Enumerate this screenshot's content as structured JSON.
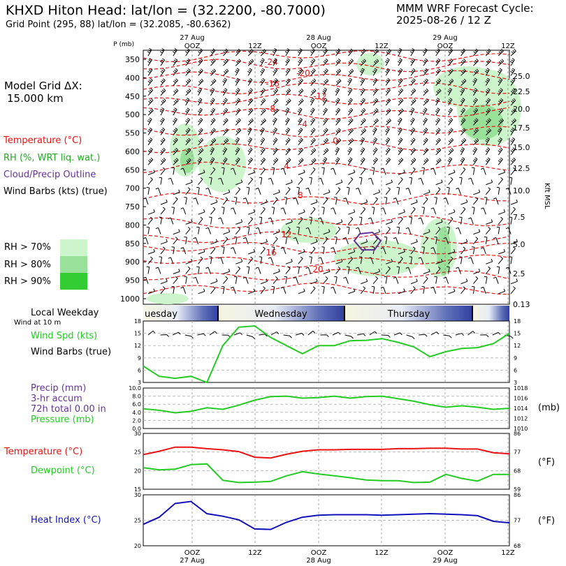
{
  "header": {
    "station": "KHXD Hiton Head:  lat/lon = (32.2200, -80.7000)",
    "gridpoint": "Grid Point (295, 88) lat/lon = (32.2085, -80.6362)",
    "model_cycle_line1": "MMM WRF Forecast Cycle:",
    "model_cycle_line2": "2025-08-26 / 12  Z"
  },
  "left_panel": {
    "model_grid_label": "Model Grid ΔX:",
    "model_grid_value": "15.000 km",
    "legend_temperature": "Temperature (°C)",
    "legend_rh": "RH (%, WRT liq. wat.)",
    "legend_cloud": "Cloud/Precip Outline",
    "legend_wind": "Wind Barbs (kts) (true)",
    "rh70": "RH > 70%",
    "rh80": "RH > 80%",
    "rh90": "RH > 90%",
    "local_weekday": "Local Weekday",
    "wind_at_10m": "Wind at 10 m",
    "wind_spd": "Wind Spd (kts)",
    "wind_barbs": "Wind Barbs (true)",
    "precip": "Precip (mm)",
    "precip_accum": "3-hr accum",
    "precip_total": "72h total 0.00 in",
    "pressure": "Pressure (mb)",
    "temperature": "Temperature (°C)",
    "dewpoint": "Dewpoint (°C)",
    "heat_index": "Heat Index (°C)"
  },
  "right_units": {
    "mb": "(mb)",
    "degF1": "(°F)",
    "degF2": "(°F)",
    "kft": "Kft MSL"
  },
  "colors": {
    "temperature": "#ee1111",
    "rh": "#22cc22",
    "cloud": "#663399",
    "heat": "#1111bb",
    "rh70": "#ccf5cc",
    "rh80": "#99e099",
    "rh90": "#33cc33"
  },
  "chart_data": [
    {
      "type": "cross-section",
      "top_time_labels": [
        {
          "day": "27 Aug",
          "hour": "OOZ"
        },
        {
          "day": "",
          "hour": "12Z"
        },
        {
          "day": "28 Aug",
          "hour": "OOZ"
        },
        {
          "day": "",
          "hour": "12Z"
        },
        {
          "day": "29 Aug",
          "hour": "OOZ"
        },
        {
          "day": "",
          "hour": "12Z"
        }
      ],
      "ylabel": "P (mb)",
      "pressure_levels": [
        "350",
        "400",
        "450",
        "500",
        "550",
        "600",
        "650",
        "700",
        "750",
        "800",
        "850",
        "900",
        "950",
        "1000"
      ],
      "height_ticks": [
        "25.0",
        "22.5",
        "20.0",
        "17.5",
        "15.0",
        "12.5",
        "10.0",
        "7.5",
        "5.0",
        "2.5",
        "0.13"
      ],
      "height_label": "Kft MSL",
      "isotherm_labels": [
        "-24",
        "-20",
        "-16",
        "-12",
        "-8",
        "-4",
        "0",
        "4",
        "8",
        "12",
        "16",
        "20"
      ]
    },
    {
      "type": "band",
      "days": [
        "uesday",
        "Wednesday",
        "Thursday"
      ]
    },
    {
      "type": "line",
      "series": [
        {
          "name": "Wind Spd (kts)",
          "values": [
            7,
            4.5,
            4,
            4.5,
            3,
            12,
            16.5,
            16.8,
            14,
            12,
            10,
            12,
            12,
            13.2,
            13.3,
            13.7,
            12.8,
            11.7,
            9.3,
            10.5,
            11.3,
            11.5,
            12.5,
            15
          ]
        }
      ],
      "ylim": [
        3,
        18
      ],
      "left_ticks": [
        "18",
        "15",
        "12",
        "9",
        "6",
        "3"
      ],
      "right_ticks": [
        "18",
        "15",
        "12",
        "9",
        "6",
        "3"
      ]
    },
    {
      "type": "line",
      "series": [
        {
          "name": "Pressure (mb)",
          "values": [
            1013.9,
            1013.6,
            1013.1,
            1013.4,
            1014.1,
            1013.8,
            1014.6,
            1015.6,
            1016.3,
            1016.4,
            1016.0,
            1016.1,
            1016.4,
            1016.0,
            1016.3,
            1016.4,
            1015.9,
            1015.4,
            1014.7,
            1014.2,
            1014.5,
            1014.2,
            1013.8,
            1014.0
          ]
        }
      ],
      "ylim": [
        1010,
        1018
      ],
      "left_ticks": [
        "10.0",
        "8.0",
        "6.0",
        "4.0",
        "2.0",
        "0.0"
      ],
      "right_ticks": [
        "1018",
        "1016",
        "1014",
        "1012",
        "1010"
      ]
    },
    {
      "type": "line",
      "series": [
        {
          "name": "Temperature (°C)",
          "values": [
            24.3,
            25.2,
            26.3,
            26.3,
            25.9,
            25.6,
            25.1,
            23.6,
            23.4,
            24.4,
            25.2,
            25.6,
            25.6,
            25.7,
            25.7,
            25.7,
            25.9,
            25.9,
            26.0,
            26.0,
            25.8,
            25.8,
            24.8,
            24.5
          ]
        },
        {
          "name": "Dewpoint (°C)",
          "values": [
            20.8,
            20.2,
            20.4,
            21.6,
            21.8,
            17.4,
            16.8,
            16.9,
            17.1,
            18.6,
            19.7,
            19.1,
            18.6,
            18.1,
            17.5,
            17.3,
            17.3,
            16.8,
            16.9,
            19.0,
            17.9,
            17.2,
            19.0,
            19.0
          ]
        }
      ],
      "ylim": [
        15,
        30
      ],
      "left_ticks": [
        "30",
        "25",
        "20",
        "15"
      ],
      "right_ticks": [
        "86",
        "77",
        "68",
        "59"
      ]
    },
    {
      "type": "line",
      "series": [
        {
          "name": "Heat Index (°C)",
          "values": [
            24.2,
            25.6,
            28.3,
            28.7,
            26.3,
            25.8,
            25.1,
            23.3,
            23.2,
            24.6,
            25.6,
            26.0,
            26.1,
            26.1,
            26.1,
            26.0,
            26.1,
            26.2,
            26.3,
            26.2,
            26.1,
            25.9,
            24.8,
            24.5
          ]
        }
      ],
      "ylim": [
        20,
        30
      ],
      "left_ticks": [
        "30",
        "25",
        "20"
      ],
      "right_ticks": [
        "86",
        "77",
        "68"
      ]
    }
  ],
  "bottom_time_labels": [
    {
      "hour": "OOZ",
      "day": "27 Aug"
    },
    {
      "hour": "12Z",
      "day": ""
    },
    {
      "hour": "OOZ",
      "day": "28 Aug"
    },
    {
      "hour": "12Z",
      "day": ""
    },
    {
      "hour": "OOZ",
      "day": "29 Aug"
    },
    {
      "hour": "12Z",
      "day": ""
    }
  ]
}
